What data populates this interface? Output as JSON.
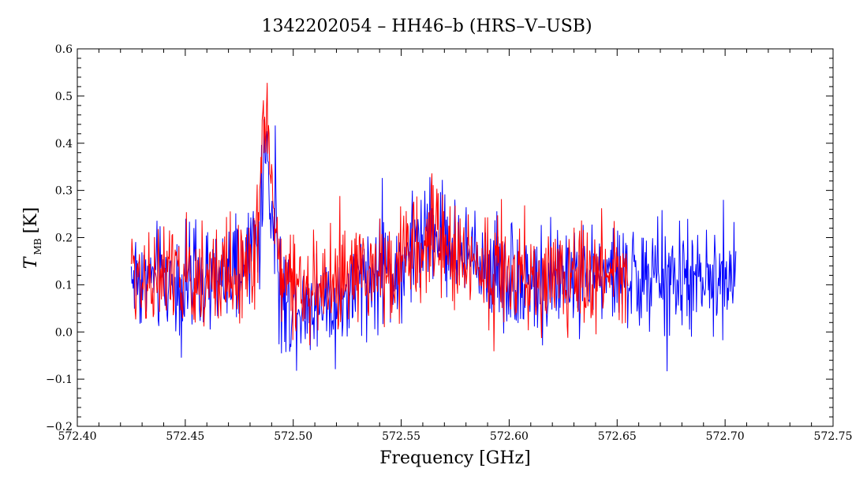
{
  "chart_data": {
    "type": "line",
    "title": "1342202054 – HH46–b (HRS–V–USB)",
    "xlabel": "Frequency [GHz]",
    "ylabel_main": "T",
    "ylabel_sub": "MB",
    "ylabel_unit": "[K]",
    "xlim": [
      572.4,
      572.75
    ],
    "ylim": [
      -0.2,
      0.6
    ],
    "xticks": [
      "572.40",
      "572.45",
      "572.50",
      "572.55",
      "572.60",
      "572.65",
      "572.70",
      "572.75"
    ],
    "yticks": [
      "−0.2",
      "−0.1",
      "0.0",
      "0.1",
      "0.2",
      "0.3",
      "0.4",
      "0.5",
      "0.6"
    ],
    "grid": false,
    "colors": {
      "series1": "#0000ff",
      "series2": "#ff0000",
      "axis": "#000000"
    },
    "series": [
      {
        "color": "#0000ff",
        "x_range": [
          572.425,
          572.705
        ],
        "points": [
          [
            572.425,
            0.12
          ],
          [
            572.44,
            0.11
          ],
          [
            572.46,
            0.1
          ],
          [
            572.475,
            0.12
          ],
          [
            572.485,
            0.22
          ],
          [
            572.487,
            0.42
          ],
          [
            572.489,
            0.3
          ],
          [
            572.495,
            0.06
          ],
          [
            572.51,
            0.07
          ],
          [
            572.52,
            0.06
          ],
          [
            572.53,
            0.1
          ],
          [
            572.54,
            0.12
          ],
          [
            572.55,
            0.14
          ],
          [
            572.56,
            0.2
          ],
          [
            572.565,
            0.22
          ],
          [
            572.575,
            0.17
          ],
          [
            572.59,
            0.14
          ],
          [
            572.6,
            0.12
          ],
          [
            572.615,
            0.1
          ],
          [
            572.63,
            0.12
          ],
          [
            572.65,
            0.12
          ],
          [
            572.67,
            0.11
          ],
          [
            572.69,
            0.1
          ],
          [
            572.705,
            0.12
          ]
        ]
      },
      {
        "color": "#ff0000",
        "x_range": [
          572.425,
          572.655
        ],
        "points": [
          [
            572.425,
            0.13
          ],
          [
            572.44,
            0.11
          ],
          [
            572.46,
            0.11
          ],
          [
            572.475,
            0.13
          ],
          [
            572.483,
            0.18
          ],
          [
            572.486,
            0.4
          ],
          [
            572.488,
            0.48
          ],
          [
            572.49,
            0.3
          ],
          [
            572.495,
            0.1
          ],
          [
            572.51,
            0.09
          ],
          [
            572.52,
            0.1
          ],
          [
            572.53,
            0.12
          ],
          [
            572.54,
            0.13
          ],
          [
            572.55,
            0.15
          ],
          [
            572.56,
            0.18
          ],
          [
            572.565,
            0.2
          ],
          [
            572.575,
            0.16
          ],
          [
            572.59,
            0.14
          ],
          [
            572.6,
            0.12
          ],
          [
            572.615,
            0.11
          ],
          [
            572.63,
            0.12
          ],
          [
            572.655,
            0.13
          ]
        ]
      }
    ]
  }
}
